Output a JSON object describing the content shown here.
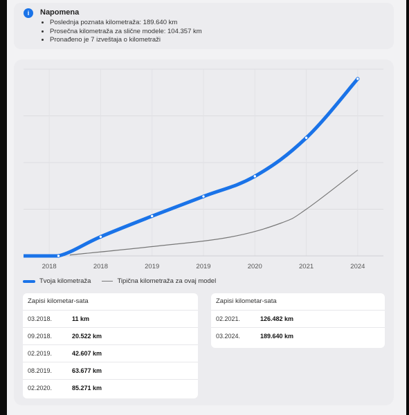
{
  "note": {
    "icon": "info-icon",
    "title": "Napomena",
    "items": [
      "Poslednja poznata kilometraža: 189.640 km",
      "Prosečna kilometraža za slične modele: 104.357 km",
      "Pronađeno je 7 izveštaja o kilometraži"
    ]
  },
  "chart_data": {
    "type": "line",
    "x_tick_labels": [
      "2018",
      "2018",
      "2019",
      "2019",
      "2020",
      "2021",
      "2024"
    ],
    "y_range": [
      0,
      200000
    ],
    "grid": true,
    "series": [
      {
        "name": "Tvoja kilometraža",
        "color": "#1a73e8",
        "points": [
          {
            "x": 0,
            "y": 0
          },
          {
            "x": 0.68,
            "y": 11
          },
          {
            "x": 1.5,
            "y": 20522
          },
          {
            "x": 2.5,
            "y": 42607
          },
          {
            "x": 3.5,
            "y": 63677
          },
          {
            "x": 4.5,
            "y": 85271
          },
          {
            "x": 5.5,
            "y": 126482
          },
          {
            "x": 6.5,
            "y": 189640
          }
        ]
      },
      {
        "name": "Tipična kilometraža za ovaj model",
        "color": "#777777",
        "points": [
          {
            "x": 0.9,
            "y": 1000
          },
          {
            "x": 2.5,
            "y": 10000
          },
          {
            "x": 4.0,
            "y": 20000
          },
          {
            "x": 5.0,
            "y": 35000
          },
          {
            "x": 5.5,
            "y": 50000
          },
          {
            "x": 6.5,
            "y": 92000
          }
        ]
      }
    ]
  },
  "legend": {
    "yours": "Tvoja kilometraža",
    "typical": "Tipična kilometraža za ovaj model"
  },
  "tables": {
    "left": {
      "title": "Zapisi kilometar-sata",
      "rows": [
        {
          "date": "03.2018.",
          "km": "11 km"
        },
        {
          "date": "09.2018.",
          "km": "20.522 km"
        },
        {
          "date": "02.2019.",
          "km": "42.607 km"
        },
        {
          "date": "08.2019.",
          "km": "63.677 km"
        },
        {
          "date": "02.2020.",
          "km": "85.271 km"
        }
      ]
    },
    "right": {
      "title": "Zapisi kilometar-sata",
      "rows": [
        {
          "date": "02.2021.",
          "km": "126.482 km"
        },
        {
          "date": "03.2024.",
          "km": "189.640 km"
        }
      ]
    }
  }
}
